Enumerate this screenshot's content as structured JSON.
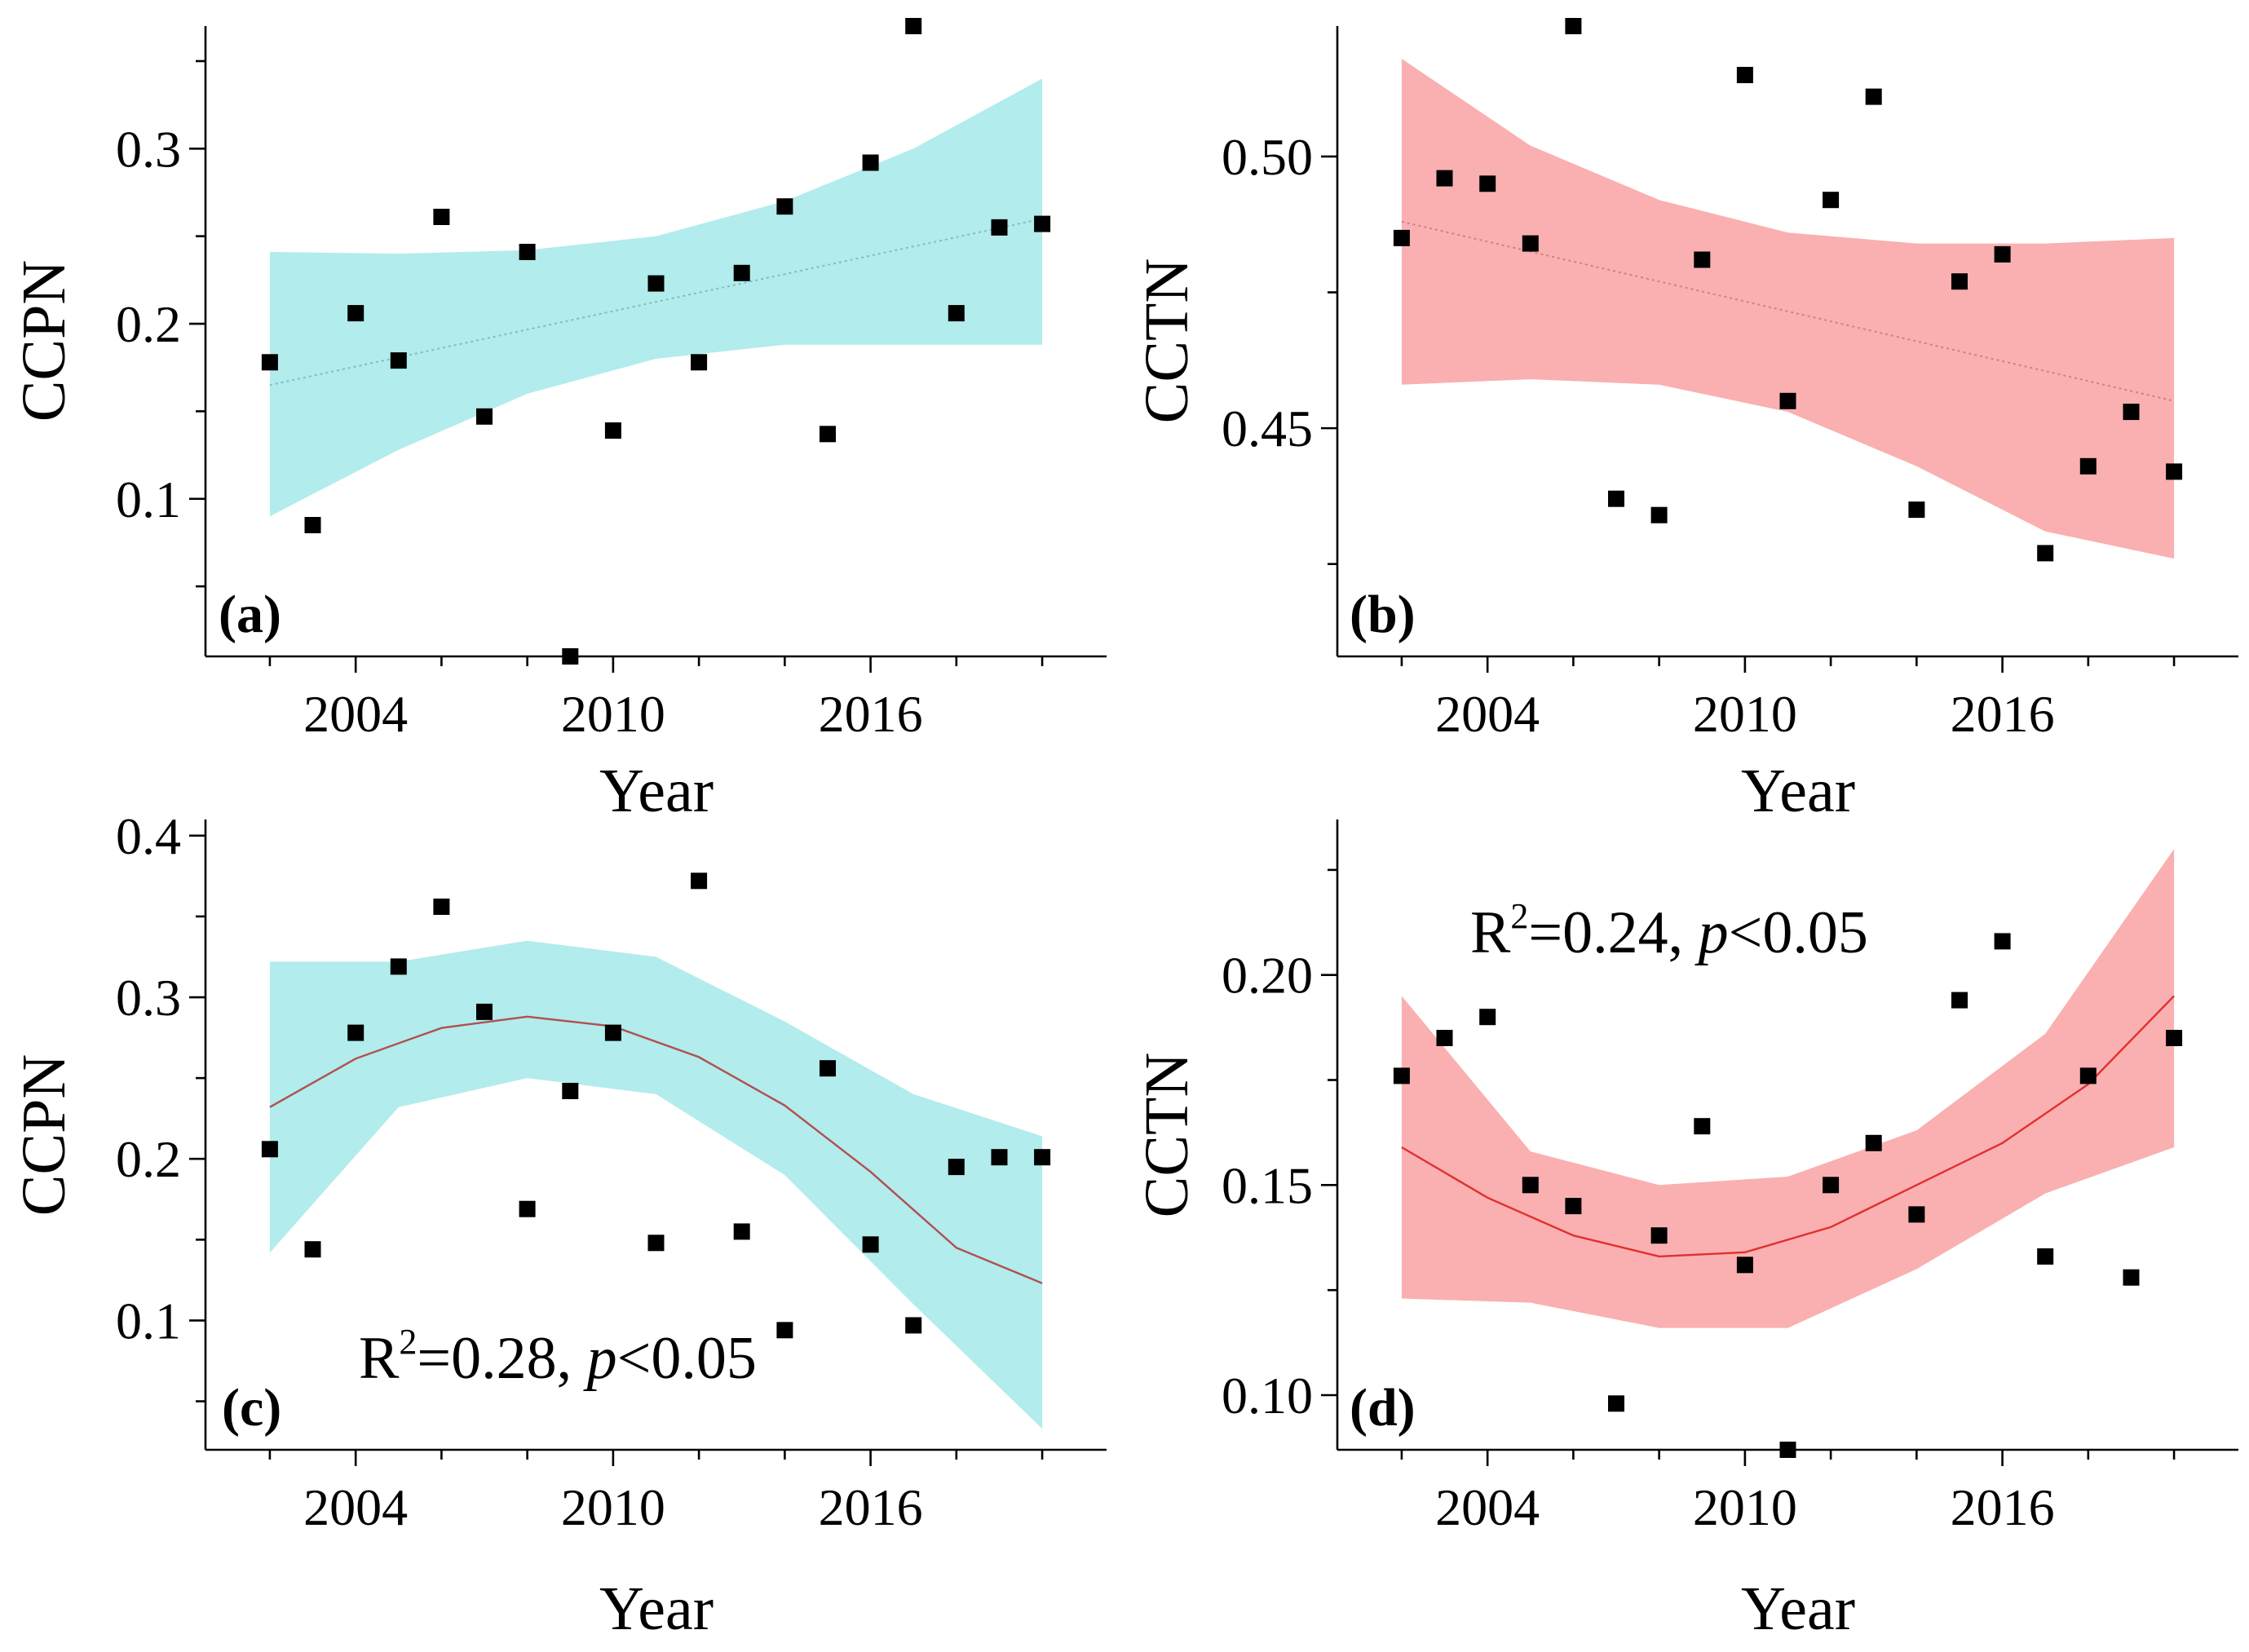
{
  "chart_data": [
    {
      "id": "a",
      "type": "scatter",
      "panel_label": "(a)",
      "xlabel": "Year",
      "ylabel": "CCPN",
      "xlim": [
        2000.5,
        2021.5
      ],
      "ylim": [
        0.01,
        0.37
      ],
      "xticks": [
        2004,
        2010,
        2016
      ],
      "xtick_labels": [
        "2004",
        "2010",
        "2016"
      ],
      "yticks": [
        0.1,
        0.2,
        0.3
      ],
      "ytick_labels": [
        "0.1",
        "0.2",
        "0.3"
      ],
      "band_color": "#b2ecec",
      "fit_color": "#7fbfbf",
      "fit_style": "dotted",
      "points": {
        "x": [
          2002,
          2003,
          2004,
          2005,
          2006,
          2007,
          2008,
          2009,
          2010,
          2011,
          2012,
          2013,
          2014,
          2015,
          2016,
          2017,
          2018,
          2019,
          2020
        ],
        "y": [
          0.178,
          0.085,
          0.206,
          0.179,
          0.261,
          0.147,
          0.241,
          0.01,
          0.139,
          0.223,
          0.178,
          0.229,
          0.267,
          0.137,
          0.292,
          0.37,
          0.206,
          0.255,
          0.257
        ]
      },
      "fit": {
        "x": [
          2002,
          2020
        ],
        "y": [
          0.165,
          0.26
        ]
      },
      "band": {
        "x": [
          2002,
          2005,
          2008,
          2011,
          2014,
          2017,
          2020
        ],
        "upper": [
          0.241,
          0.24,
          0.242,
          0.25,
          0.27,
          0.3,
          0.34
        ],
        "lower": [
          0.09,
          0.128,
          0.16,
          0.18,
          0.188,
          0.188,
          0.188
        ]
      },
      "annotation": ""
    },
    {
      "id": "b",
      "type": "scatter",
      "panel_label": "(b)",
      "xlabel": "Year",
      "ylabel": "CCTN",
      "xlim": [
        2000.5,
        2021.5
      ],
      "ylim": [
        0.408,
        0.524
      ],
      "xticks": [
        2004,
        2010,
        2016
      ],
      "xtick_labels": [
        "2004",
        "2010",
        "2016"
      ],
      "yticks": [
        0.45,
        0.5
      ],
      "ytick_labels": [
        "0.45",
        "0.50"
      ],
      "minor_yticks": [
        0.425,
        0.475
      ],
      "band_color": "#fab0b0",
      "fit_color": "#d08080",
      "fit_style": "dotted",
      "points": {
        "x": [
          2002,
          2003,
          2004,
          2005,
          2006,
          2007,
          2008,
          2009,
          2010,
          2011,
          2012,
          2013,
          2014,
          2015,
          2016,
          2017,
          2018,
          2019,
          2020
        ],
        "y": [
          0.485,
          0.496,
          0.495,
          0.484,
          0.524,
          0.437,
          0.434,
          0.481,
          0.515,
          0.455,
          0.492,
          0.511,
          0.435,
          0.477,
          0.482,
          0.427,
          0.443,
          0.453,
          0.442
        ]
      },
      "fit": {
        "x": [
          2002,
          2020
        ],
        "y": [
          0.488,
          0.455
        ]
      },
      "band": {
        "x": [
          2002,
          2005,
          2008,
          2011,
          2014,
          2017,
          2020
        ],
        "upper": [
          0.518,
          0.502,
          0.492,
          0.486,
          0.484,
          0.484,
          0.485
        ],
        "lower": [
          0.458,
          0.459,
          0.458,
          0.453,
          0.443,
          0.431,
          0.426
        ]
      },
      "annotation": ""
    },
    {
      "id": "c",
      "type": "scatter",
      "panel_label": "(c)",
      "xlabel": "Year",
      "ylabel": "CCPN",
      "xlim": [
        2000.5,
        2021.5
      ],
      "ylim": [
        0.02,
        0.41
      ],
      "xticks": [
        2004,
        2010,
        2016
      ],
      "xtick_labels": [
        "2004",
        "2010",
        "2016"
      ],
      "yticks": [
        0.1,
        0.2,
        0.3,
        0.4
      ],
      "ytick_labels": [
        "0.1",
        "0.2",
        "0.3",
        "0.4"
      ],
      "minor_yticks": [
        0.05,
        0.15,
        0.25,
        0.35
      ],
      "band_color": "#b2ecec",
      "fit_color": "#b0504f",
      "fit_style": "solid",
      "points": {
        "x": [
          2002,
          2003,
          2004,
          2005,
          2006,
          2007,
          2008,
          2009,
          2010,
          2011,
          2012,
          2013,
          2014,
          2015,
          2016,
          2017,
          2018,
          2019,
          2020
        ],
        "y": [
          0.206,
          0.144,
          0.278,
          0.319,
          0.356,
          0.291,
          0.169,
          0.242,
          0.278,
          0.148,
          0.372,
          0.155,
          0.094,
          0.256,
          0.147,
          0.097,
          0.195,
          0.201,
          0.201
        ]
      },
      "fit": {
        "x": [
          2002,
          2004,
          2006,
          2008,
          2010,
          2012,
          2014,
          2016,
          2018,
          2020
        ],
        "y": [
          0.232,
          0.262,
          0.281,
          0.288,
          0.282,
          0.263,
          0.233,
          0.192,
          0.145,
          0.123
        ]
      },
      "band": {
        "x": [
          2002,
          2005,
          2008,
          2011,
          2014,
          2017,
          2020
        ],
        "upper": [
          0.322,
          0.322,
          0.335,
          0.325,
          0.285,
          0.24,
          0.214
        ],
        "lower": [
          0.142,
          0.232,
          0.25,
          0.24,
          0.19,
          0.11,
          0.033
        ]
      },
      "annotation": "R2=0.28, p<0.05",
      "annotation_parts": {
        "r": "R",
        "sup": "2",
        "mid": "=0.28, ",
        "p": "p",
        "tail": "<0.05"
      }
    },
    {
      "id": "d",
      "type": "scatter",
      "panel_label": "(d)",
      "xlabel": "Year",
      "ylabel": "CCTN",
      "xlim": [
        2000.5,
        2021.5
      ],
      "ylim": [
        0.087,
        0.237
      ],
      "xticks": [
        2004,
        2010,
        2016
      ],
      "xtick_labels": [
        "2004",
        "2010",
        "2016"
      ],
      "yticks": [
        0.1,
        0.15,
        0.2
      ],
      "ytick_labels": [
        "0.10",
        "0.15",
        "0.20"
      ],
      "minor_yticks": [
        0.125,
        0.175,
        0.225
      ],
      "band_color": "#fab0b0",
      "fit_color": "#e03030",
      "fit_style": "solid",
      "points": {
        "x": [
          2002,
          2003,
          2004,
          2005,
          2006,
          2007,
          2008,
          2009,
          2010,
          2011,
          2012,
          2013,
          2014,
          2015,
          2016,
          2017,
          2018,
          2019,
          2020
        ],
        "y": [
          0.176,
          0.185,
          0.19,
          0.15,
          0.145,
          0.098,
          0.138,
          0.164,
          0.131,
          0.087,
          0.15,
          0.16,
          0.143,
          0.194,
          0.208,
          0.133,
          0.176,
          0.128,
          0.185
        ]
      },
      "fit": {
        "x": [
          2002,
          2004,
          2006,
          2008,
          2010,
          2012,
          2014,
          2016,
          2018,
          2020
        ],
        "y": [
          0.159,
          0.147,
          0.138,
          0.133,
          0.134,
          0.14,
          0.15,
          0.16,
          0.174,
          0.195
        ]
      },
      "band": {
        "x": [
          2002,
          2005,
          2008,
          2011,
          2014,
          2017,
          2020
        ],
        "upper": [
          0.195,
          0.158,
          0.15,
          0.152,
          0.163,
          0.186,
          0.23
        ],
        "lower": [
          0.123,
          0.122,
          0.116,
          0.116,
          0.13,
          0.148,
          0.159
        ]
      },
      "annotation": "R2=0.24, p<0.05",
      "annotation_parts": {
        "r": "R",
        "sup": "2",
        "mid": "=0.24, ",
        "p": "p",
        "tail": "<0.05"
      }
    }
  ]
}
